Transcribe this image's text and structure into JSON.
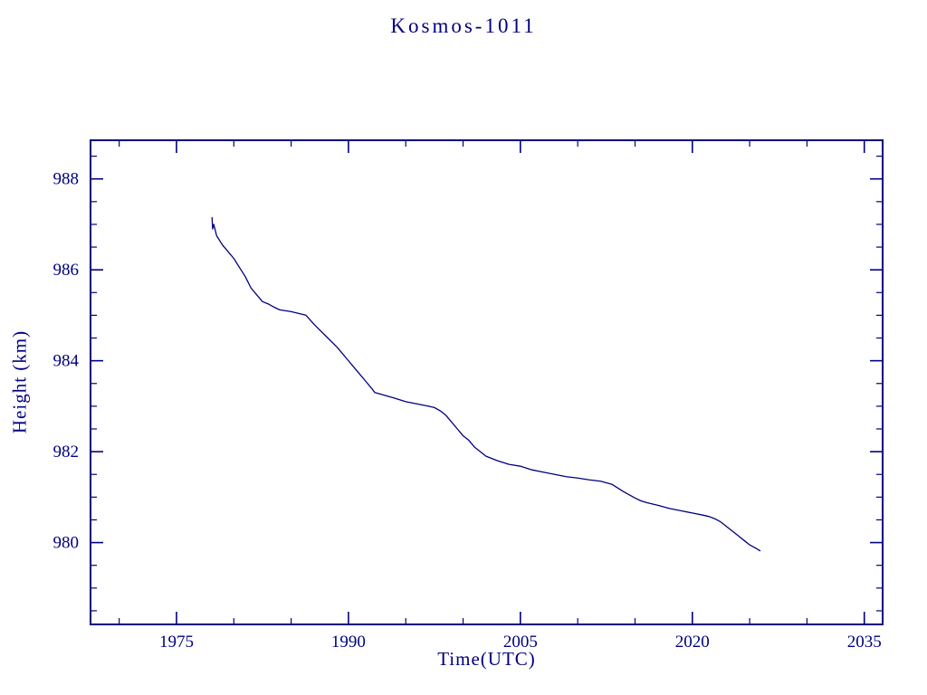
{
  "chart_data": {
    "type": "line",
    "title": "Kosmos-1011",
    "xlabel": "Time(UTC)",
    "ylabel": "Height (km)",
    "xlim": [
      1967.5,
      2036.6
    ],
    "ylim": [
      978.2,
      988.85
    ],
    "x_major_ticks": [
      1975,
      1990,
      2005,
      2020,
      2035
    ],
    "x_minor_step": 5,
    "y_major_ticks": [
      980,
      982,
      984,
      986,
      988
    ],
    "y_minor_step": 0.5,
    "grid": false,
    "legend": "none",
    "background": "#ffffff",
    "axis_color": "#000080",
    "line_color": "#000080",
    "series": [
      {
        "name": "Kosmos-1011 height (km)",
        "x": [
          1978.1,
          1978.15,
          1978.25,
          1978.5,
          1979.0,
          1979.5,
          1980.0,
          1980.5,
          1981.0,
          1981.5,
          1982.0,
          1982.5,
          1983.0,
          1983.5,
          1984.0,
          1984.5,
          1985.0,
          1985.5,
          1986.0,
          1986.3,
          1987.0,
          1988.0,
          1989.0,
          1990.0,
          1990.5,
          1991.0,
          1991.5,
          1992.0,
          1992.3,
          1993.0,
          1994.0,
          1995.0,
          1996.0,
          1997.0,
          1997.5,
          1998.0,
          1998.5,
          1999.0,
          1999.5,
          2000.0,
          2000.5,
          2001.0,
          2001.5,
          2002.0,
          2002.5,
          2003.0,
          2004.0,
          2005.0,
          2006.0,
          2007.0,
          2008.0,
          2009.0,
          2010.0,
          2011.0,
          2012.0,
          2013.0,
          2013.5,
          2014.0,
          2014.5,
          2015.0,
          2015.5,
          2016.0,
          2017.0,
          2018.0,
          2019.0,
          2020.0,
          2021.0,
          2021.5,
          2022.0,
          2022.5,
          2023.0,
          2023.5,
          2024.0,
          2024.5,
          2025.0,
          2025.5,
          2025.9
        ],
        "y": [
          987.15,
          986.9,
          987.0,
          986.75,
          986.55,
          986.4,
          986.25,
          986.05,
          985.85,
          985.6,
          985.45,
          985.3,
          985.25,
          985.18,
          985.12,
          985.1,
          985.08,
          985.05,
          985.02,
          985.0,
          984.8,
          984.55,
          984.3,
          984.0,
          983.85,
          983.7,
          983.55,
          983.4,
          983.3,
          983.25,
          983.18,
          983.1,
          983.05,
          983.0,
          982.97,
          982.9,
          982.8,
          982.65,
          982.5,
          982.35,
          982.25,
          982.1,
          982.0,
          981.9,
          981.85,
          981.8,
          981.72,
          981.68,
          981.6,
          981.55,
          981.5,
          981.45,
          981.42,
          981.38,
          981.35,
          981.28,
          981.2,
          981.12,
          981.05,
          980.98,
          980.92,
          980.88,
          980.82,
          980.75,
          980.7,
          980.65,
          980.6,
          980.57,
          980.52,
          980.45,
          980.35,
          980.25,
          980.15,
          980.05,
          979.95,
          979.88,
          979.82
        ]
      }
    ]
  }
}
